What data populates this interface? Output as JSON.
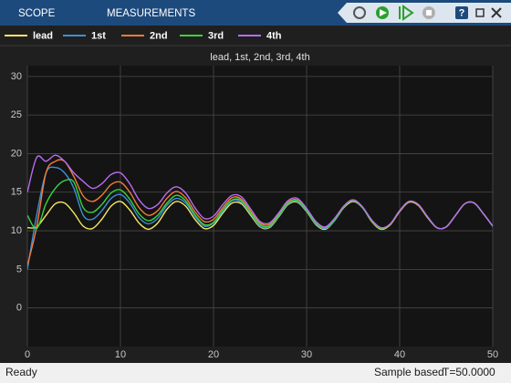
{
  "toolbar": {
    "tabs": [
      "SCOPE",
      "MEASUREMENTS"
    ]
  },
  "status": {
    "state": "Ready",
    "mode": "Sample based",
    "time": "T=50.0000"
  },
  "chart_data": {
    "type": "line",
    "title": "lead, 1st, 2nd, 3rd, 4th",
    "x": [
      0,
      1,
      2,
      3,
      4,
      5,
      6,
      7,
      8,
      9,
      10,
      11,
      12,
      13,
      14,
      15,
      16,
      17,
      18,
      19,
      20,
      21,
      22,
      23,
      24,
      25,
      26,
      27,
      28,
      29,
      30,
      31,
      32,
      33,
      34,
      35,
      36,
      37,
      38,
      39,
      40,
      41,
      42,
      43,
      44,
      45,
      46,
      47,
      48,
      49,
      50
    ],
    "series": [
      {
        "name": "lead",
        "color": "#f5e663",
        "values": [
          10.4,
          10.5,
          12,
          13.5,
          13.6,
          12.3,
          10.6,
          10.3,
          11.5,
          13.2,
          13.8,
          12.7,
          11,
          10.2,
          11,
          12.8,
          13.8,
          13.2,
          11.5,
          10.3,
          10.7,
          12.3,
          13.6,
          13.5,
          12,
          10.5,
          10.4,
          11.8,
          13.4,
          13.7,
          12.5,
          10.8,
          10.2,
          11.3,
          13,
          13.8,
          13,
          11.2,
          10.2,
          10.8,
          12.5,
          13.7,
          13.3,
          11.7,
          10.4,
          10.5,
          12,
          13.5,
          13.6,
          12.2,
          10.6
        ]
      },
      {
        "name": "1st",
        "color": "#3d8fd8",
        "values": [
          5,
          12,
          17.5,
          18.2,
          17.5,
          15.5,
          12,
          11.5,
          12.6,
          14.2,
          14.7,
          13.6,
          11.7,
          10.9,
          11.6,
          13.3,
          14.2,
          13.6,
          11.9,
          10.6,
          11,
          12.5,
          13.9,
          13.7,
          12.2,
          10.6,
          10.5,
          11.9,
          13.5,
          13.8,
          12.6,
          10.9,
          10.3,
          11.3,
          13.1,
          13.9,
          13,
          11.3,
          10.3,
          10.9,
          12.6,
          13.8,
          13.4,
          11.8,
          10.4,
          10.5,
          12,
          13.5,
          13.6,
          12.2,
          10.6
        ]
      },
      {
        "name": "2nd",
        "color": "#f07c38",
        "values": [
          5.5,
          10.5,
          17.5,
          19,
          19,
          17,
          14.5,
          13.8,
          14.6,
          16,
          16.3,
          15,
          13,
          12,
          12.6,
          14.2,
          15.1,
          14.3,
          12.5,
          11.2,
          11.5,
          13,
          14.3,
          14.1,
          12.5,
          11,
          10.8,
          12.1,
          13.7,
          14,
          12.8,
          11,
          10.4,
          11.5,
          13.2,
          14,
          13.1,
          11.3,
          10.3,
          10.9,
          12.6,
          13.8,
          13.4,
          11.8,
          10.4,
          10.5,
          12,
          13.5,
          13.6,
          12.2,
          10.6
        ]
      },
      {
        "name": "3rd",
        "color": "#3ad43a",
        "values": [
          12,
          10.3,
          13.5,
          15.5,
          16.5,
          16.3,
          13,
          12.4,
          13.4,
          14.9,
          15.3,
          14.1,
          12.2,
          11.3,
          12,
          13.6,
          14.6,
          13.9,
          12.1,
          10.8,
          11.1,
          12.7,
          14,
          13.9,
          12.3,
          10.8,
          10.6,
          12,
          13.6,
          13.9,
          12.7,
          11,
          10.4,
          11.4,
          13.1,
          13.9,
          13,
          11.3,
          10.3,
          10.9,
          12.6,
          13.8,
          13.4,
          11.8,
          10.4,
          10.5,
          12,
          13.5,
          13.6,
          12.2,
          10.6
        ]
      },
      {
        "name": "4th",
        "color": "#bb6cf2",
        "values": [
          15,
          19.5,
          19,
          19.8,
          19,
          17.5,
          16.4,
          15.5,
          16.1,
          17.3,
          17.5,
          16.1,
          14,
          12.9,
          13.4,
          14.9,
          15.7,
          14.9,
          13,
          11.6,
          11.9,
          13.4,
          14.6,
          14.4,
          12.8,
          11.2,
          11,
          12.3,
          13.9,
          14.2,
          12.9,
          11.2,
          10.5,
          11.6,
          13.2,
          14,
          13.1,
          11.4,
          10.4,
          10.9,
          12.6,
          13.8,
          13.4,
          11.8,
          10.4,
          10.5,
          12,
          13.5,
          13.6,
          12.2,
          10.6
        ]
      }
    ],
    "xlim": [
      0,
      50
    ],
    "xticks": [
      0,
      10,
      20,
      30,
      40,
      50
    ],
    "ylim": [
      -5,
      31.4
    ],
    "yticks": [
      0,
      5,
      10,
      15,
      20,
      25,
      30
    ],
    "grid": true
  }
}
